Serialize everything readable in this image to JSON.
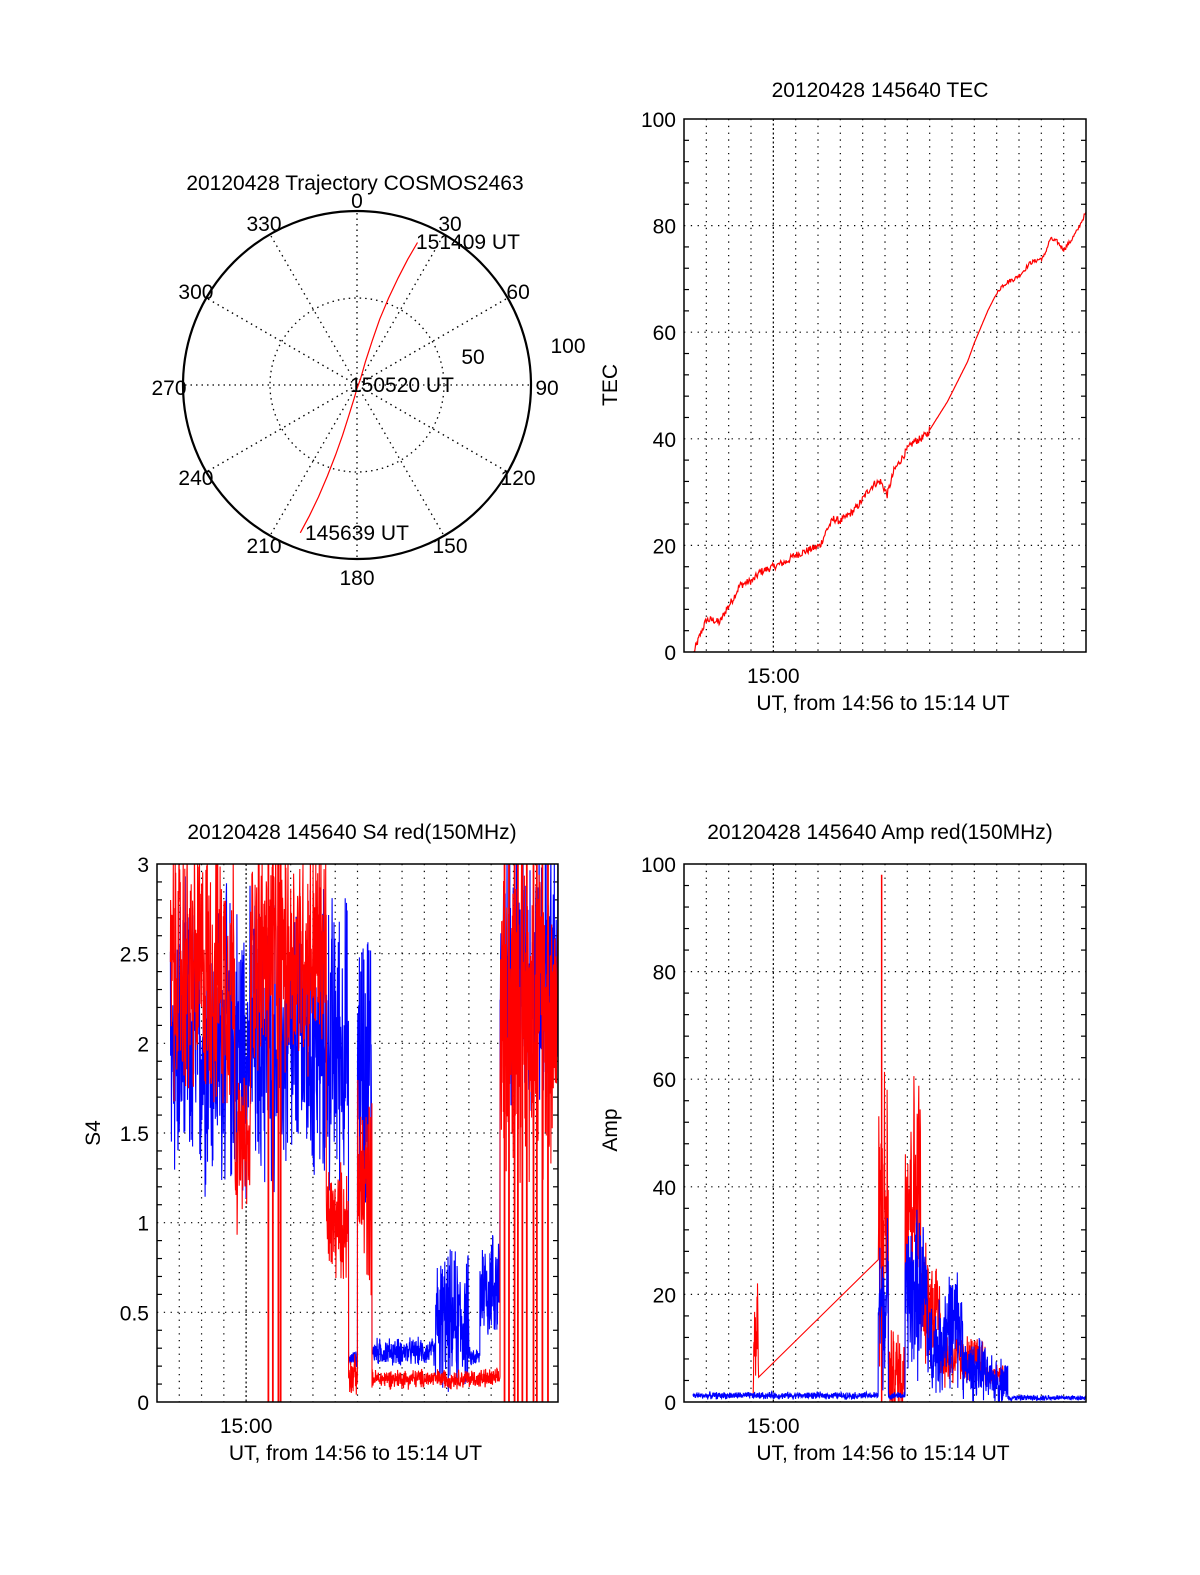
{
  "colors": {
    "red": "#ff0000",
    "blue": "#0000ff",
    "axis": "#000000",
    "background": "#ffffff"
  },
  "chart_data": [
    {
      "type": "polar",
      "id": "trajectory",
      "title": "20120428 Trajectory COSMOS2463",
      "angle_labels": [
        "0",
        "30",
        "60",
        "90",
        "120",
        "150",
        "180",
        "210",
        "240",
        "270",
        "300",
        "330"
      ],
      "angles_deg": [
        0,
        30,
        60,
        90,
        120,
        150,
        180,
        210,
        240,
        270,
        300,
        330
      ],
      "radial_labels": [
        "50",
        "100"
      ],
      "radial_values": [
        50,
        100
      ],
      "rlim": [
        0,
        100
      ],
      "grid": true,
      "series": [
        {
          "name": "trajectory",
          "color": "red",
          "points_az_zenith": [
            [
              201,
              91
            ],
            [
              200,
              80
            ],
            [
              199,
              68
            ],
            [
              198,
              55
            ],
            [
              197,
              42
            ],
            [
              196,
              30
            ],
            [
              195,
              18
            ],
            [
              192,
              8
            ],
            [
              180,
              2
            ],
            [
              30,
              4
            ],
            [
              20,
              14
            ],
            [
              19,
              27
            ],
            [
              19,
              40
            ],
            [
              20,
              53
            ],
            [
              21,
              66
            ],
            [
              22,
              78
            ],
            [
              23,
              89
            ]
          ]
        }
      ],
      "annotations": [
        {
          "text": "151409 UT",
          "at": "end"
        },
        {
          "text": "150520 UT",
          "at": "zenith"
        },
        {
          "text": "145639 UT",
          "at": "start"
        }
      ]
    },
    {
      "type": "line",
      "id": "tec",
      "title": "20120428 145640 TEC",
      "xlabel": "UT, from 14:56 to 15:14 UT",
      "ylabel": "TEC",
      "xlim_min": [
        0,
        18
      ],
      "x_tick_labels": [
        {
          "min": 4,
          "label": "15:00"
        }
      ],
      "ylim": [
        0,
        100
      ],
      "y_ticks": [
        "0",
        "20",
        "40",
        "60",
        "80",
        "100"
      ],
      "grid": true,
      "series": [
        {
          "name": "TEC",
          "color": "red",
          "x_min": [
            0.45,
            0.7,
            1.0,
            1.3,
            1.6,
            1.9,
            2.2,
            2.5,
            2.8,
            3.1,
            3.4,
            3.7,
            4.0,
            4.3,
            4.6,
            4.9,
            5.2,
            5.5,
            5.8,
            6.1,
            6.4,
            6.7,
            7.0,
            7.3,
            7.6,
            7.9,
            8.2,
            8.5,
            8.8,
            9.1,
            9.4,
            9.7,
            10.0,
            10.3,
            10.6,
            10.9,
            11.2,
            11.5,
            11.8,
            12.1,
            12.4,
            12.7,
            13.0,
            13.3,
            13.6,
            13.9,
            14.2,
            14.5,
            14.8,
            15.1,
            15.5,
            15.8,
            16.1,
            16.4,
            16.7,
            17.0,
            17.3,
            17.6,
            18.0
          ],
          "values": [
            0,
            3,
            6,
            6,
            5.5,
            8,
            10,
            12.5,
            13,
            13.5,
            15,
            15.5,
            16,
            16.5,
            17,
            18,
            18.5,
            19,
            19.5,
            20,
            23,
            25,
            24.5,
            25.5,
            26.5,
            28,
            30,
            31.5,
            32,
            29.5,
            34,
            36,
            38,
            39.5,
            40,
            41,
            43,
            45,
            47,
            49.5,
            52,
            54.5,
            58,
            61,
            64,
            66.5,
            68.5,
            69.5,
            70,
            71,
            73,
            73.5,
            74,
            77.5,
            77,
            75.5,
            77,
            79,
            82.5
          ]
        }
      ]
    },
    {
      "type": "line",
      "id": "s4",
      "title": "20120428 145640 S4 red(150MHz)",
      "xlabel": "UT, from 14:56 to 15:14 UT",
      "ylabel": "S4",
      "xlim_min": [
        0,
        18
      ],
      "x_tick_labels": [
        {
          "min": 4,
          "label": "15:00"
        }
      ],
      "ylim": [
        0,
        3
      ],
      "y_ticks": [
        "0",
        "0.5",
        "1",
        "1.5",
        "2",
        "2.5",
        "3"
      ],
      "grid": true,
      "series": [
        {
          "name": "S4 blue",
          "color": "blue",
          "segments": [
            {
              "from": 0.6,
              "to": 8.6,
              "base": 2.0,
              "spread": 0.75
            },
            {
              "from": 8.6,
              "to": 9.0,
              "base": 0.24,
              "spread": 0.04
            },
            {
              "from": 9.0,
              "to": 9.65,
              "base": 1.9,
              "spread": 0.8
            },
            {
              "from": 9.65,
              "to": 12.5,
              "base": 0.28,
              "spread": 0.07
            },
            {
              "from": 12.5,
              "to": 14.0,
              "base": 0.45,
              "spread": 0.35
            },
            {
              "from": 14.0,
              "to": 14.5,
              "base": 0.25,
              "spread": 0.05
            },
            {
              "from": 14.5,
              "to": 15.4,
              "base": 0.65,
              "spread": 0.3
            },
            {
              "from": 15.4,
              "to": 18.0,
              "base": 2.4,
              "spread": 0.7
            }
          ]
        },
        {
          "name": "S4 red",
          "color": "red",
          "segments": [
            {
              "from": 0.6,
              "to": 3.5,
              "base": 2.4,
              "spread": 0.7
            },
            {
              "from": 3.5,
              "to": 4.2,
              "base": 1.4,
              "spread": 0.4
            },
            {
              "from": 4.2,
              "to": 7.6,
              "base": 2.5,
              "spread": 0.6
            },
            {
              "from": 7.6,
              "to": 8.6,
              "base": 1.0,
              "spread": 0.3
            },
            {
              "from": 8.6,
              "to": 9.0,
              "base": 0.15,
              "spread": 0.1
            },
            {
              "from": 9.0,
              "to": 9.65,
              "base": 1.2,
              "spread": 0.5
            },
            {
              "from": 9.65,
              "to": 15.4,
              "base": 0.13,
              "spread": 0.05
            },
            {
              "from": 15.4,
              "to": 18.0,
              "base": 2.2,
              "spread": 0.8
            }
          ],
          "dropouts_min": [
            5.0,
            5.2,
            5.45,
            5.55,
            15.6,
            15.8,
            16.05,
            16.2,
            16.4,
            16.6,
            16.9,
            17.05,
            17.3,
            17.55
          ]
        }
      ]
    },
    {
      "type": "line",
      "id": "amp",
      "title": "20120428 145640 Amp red(150MHz)",
      "xlabel": "UT, from 14:56 to 15:14 UT",
      "ylabel": "Amp",
      "xlim_min": [
        0,
        18
      ],
      "x_tick_labels": [
        {
          "min": 4,
          "label": "15:00"
        }
      ],
      "ylim": [
        0,
        100
      ],
      "y_ticks": [
        "0",
        "20",
        "40",
        "60",
        "80",
        "100"
      ],
      "grid": true,
      "series": [
        {
          "name": "Amp red",
          "color": "red",
          "segments": [
            {
              "from": 3.1,
              "to": 3.35,
              "base": 12,
              "spread": 12
            },
            {
              "from": 8.7,
              "to": 9.15,
              "base": 35,
              "spread": 25
            },
            {
              "from": 9.15,
              "to": 9.9,
              "base": 5,
              "spread": 8
            },
            {
              "from": 9.9,
              "to": 10.6,
              "base": 40,
              "spread": 20
            },
            {
              "from": 10.6,
              "to": 11.5,
              "base": 18,
              "spread": 10
            },
            {
              "from": 11.5,
              "to": 12.3,
              "base": 8,
              "spread": 5
            },
            {
              "from": 12.3,
              "to": 13.5,
              "base": 8,
              "spread": 4
            },
            {
              "from": 13.5,
              "to": 14.5,
              "base": 5,
              "spread": 2
            }
          ],
          "peak": {
            "min": 8.85,
            "value": 98
          }
        },
        {
          "name": "Amp blue",
          "color": "blue",
          "segments": [
            {
              "from": 0.4,
              "to": 8.7,
              "base": 1.2,
              "spread": 0.6
            },
            {
              "from": 8.7,
              "to": 9.15,
              "base": 18,
              "spread": 14
            },
            {
              "from": 9.15,
              "to": 9.9,
              "base": 1.2,
              "spread": 0.6
            },
            {
              "from": 9.9,
              "to": 10.9,
              "base": 20,
              "spread": 14
            },
            {
              "from": 10.9,
              "to": 11.6,
              "base": 10,
              "spread": 8
            },
            {
              "from": 11.6,
              "to": 12.5,
              "base": 14,
              "spread": 10
            },
            {
              "from": 12.5,
              "to": 13.5,
              "base": 6,
              "spread": 5
            },
            {
              "from": 13.5,
              "to": 14.5,
              "base": 4,
              "spread": 4
            },
            {
              "from": 14.5,
              "to": 18.0,
              "base": 0.8,
              "spread": 0.5
            }
          ]
        }
      ]
    }
  ],
  "texts": {
    "polar_title": "20120428 Trajectory COSMOS2463",
    "polar_label_end": "151409 UT",
    "polar_label_mid": "150520 UT",
    "polar_label_start": "145639 UT",
    "polar_r50": "50",
    "polar_r100": "100",
    "tec_title": "20120428 145640 TEC",
    "tec_ylabel": "TEC",
    "s4_title": "20120428 145640 S4 red(150MHz)",
    "s4_ylabel": "S4",
    "amp_title": "20120428 145640 Amp red(150MHz)",
    "amp_ylabel": "Amp",
    "xlabel": "UT, from 14:56 to 15:14 UT",
    "xtick": "15:00"
  }
}
